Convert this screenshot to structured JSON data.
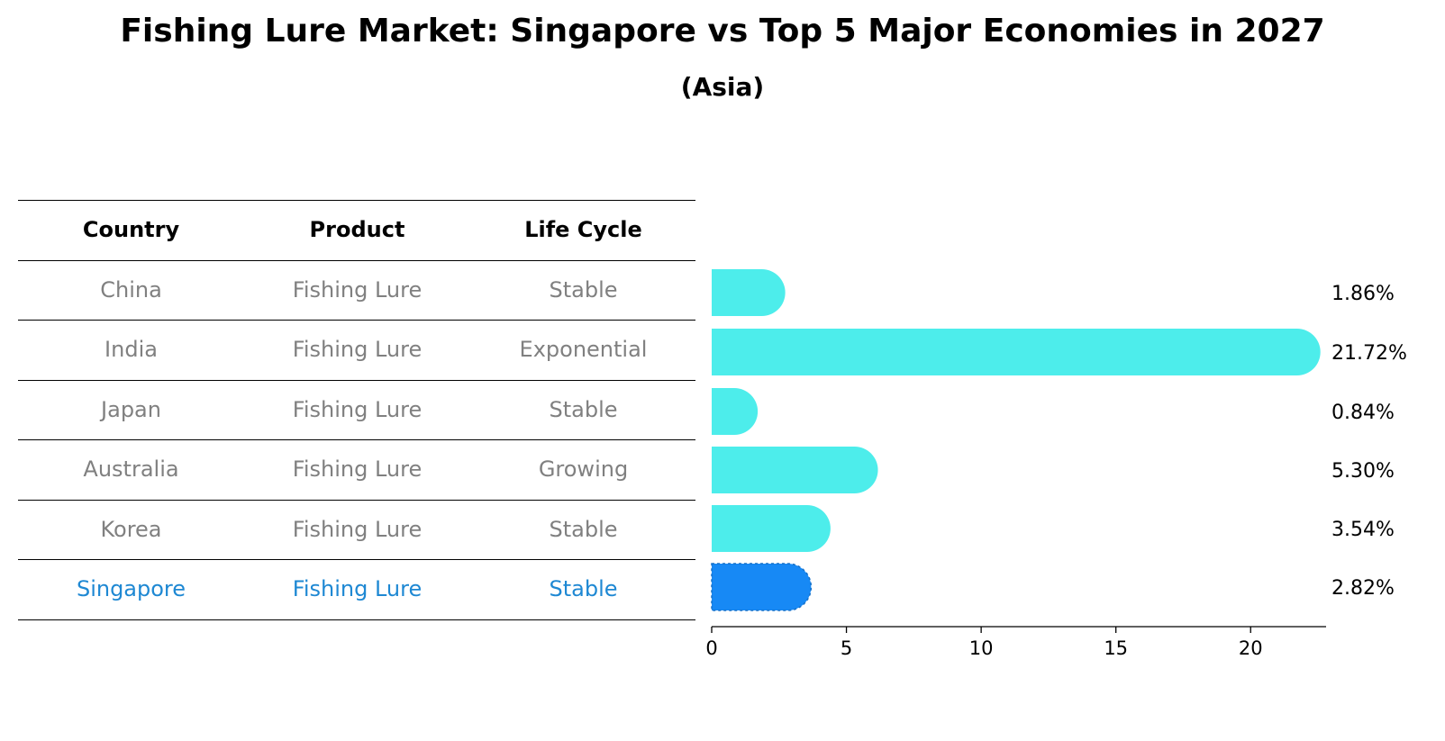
{
  "header": {
    "title": "Fishing Lure Market: Singapore vs Top 5 Major Economies in 2027",
    "subtitle": "(Asia)"
  },
  "table": {
    "headers": [
      "Country",
      "Product",
      "Life Cycle"
    ],
    "rows": [
      {
        "country": "China",
        "product": "Fishing Lure",
        "life_cycle": "Stable",
        "highlight": false
      },
      {
        "country": "India",
        "product": "Fishing Lure",
        "life_cycle": "Exponential",
        "highlight": false
      },
      {
        "country": "Japan",
        "product": "Fishing Lure",
        "life_cycle": "Stable",
        "highlight": false
      },
      {
        "country": "Australia",
        "product": "Fishing Lure",
        "life_cycle": "Growing",
        "highlight": false
      },
      {
        "country": "Korea",
        "product": "Fishing Lure",
        "life_cycle": "Stable",
        "highlight": false
      },
      {
        "country": "Singapore",
        "product": "Fishing Lure",
        "life_cycle": "Stable",
        "highlight": true
      }
    ]
  },
  "chart_data": {
    "type": "bar",
    "orientation": "horizontal",
    "title": "Fishing Lure Market: Singapore vs Top 5 Major Economies in 2027",
    "subtitle": "(Asia)",
    "categories": [
      "China",
      "India",
      "Japan",
      "Australia",
      "Korea",
      "Singapore"
    ],
    "values": [
      1.86,
      21.72,
      0.84,
      5.3,
      3.54,
      2.82
    ],
    "value_labels": [
      "1.86%",
      "21.72%",
      "0.84%",
      "5.30%",
      "3.54%",
      "2.82%"
    ],
    "xlim": [
      0,
      22.8
    ],
    "xticks": [
      0,
      5,
      10,
      15,
      20
    ],
    "xlabel": "",
    "ylabel": "",
    "grid": false,
    "colors": {
      "default_bar": "#4DEDEB",
      "highlight_bar": "#1789F5",
      "highlight_text": "#1E88D3",
      "muted_text": "#808080"
    }
  }
}
